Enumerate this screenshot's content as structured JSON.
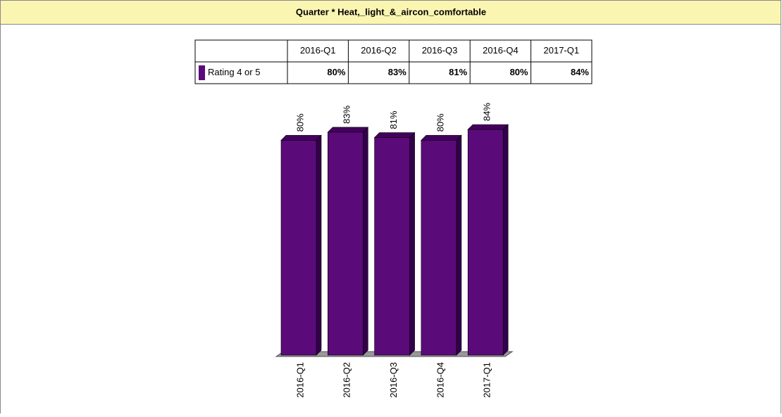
{
  "chart_data": {
    "type": "bar",
    "title": "Quarter * Heat,_light_&_aircon_comfortable",
    "categories": [
      "2016-Q1",
      "2016-Q2",
      "2016-Q3",
      "2016-Q4",
      "2017-Q1"
    ],
    "series": [
      {
        "name": "Rating 4 or 5",
        "color": "#5b0a7a",
        "values": [
          80,
          83,
          81,
          80,
          84
        ],
        "value_labels": [
          "80%",
          "83%",
          "81%",
          "80%",
          "84%"
        ]
      }
    ]
  }
}
